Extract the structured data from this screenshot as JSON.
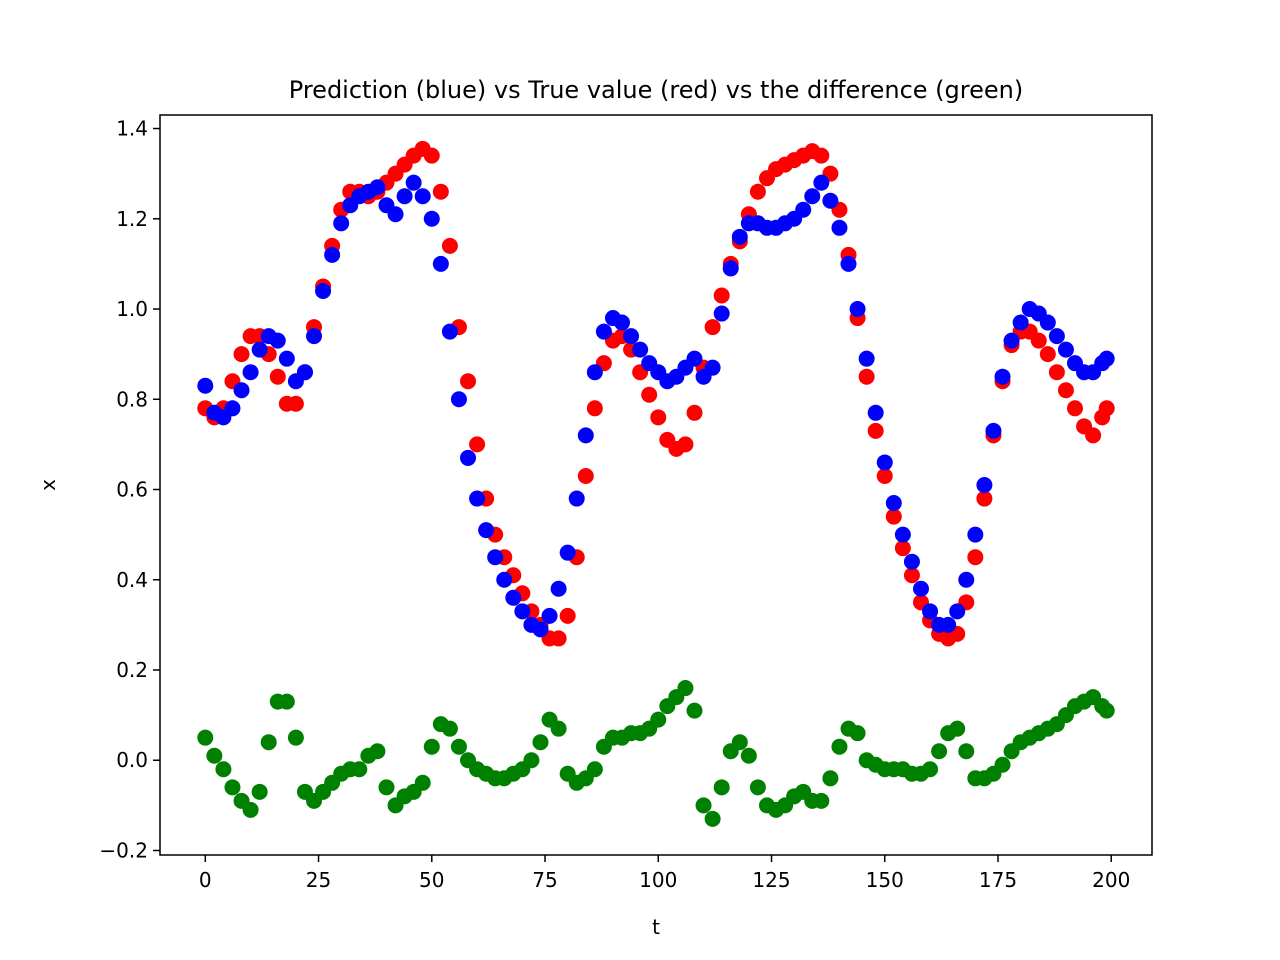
{
  "chart_data": {
    "type": "scatter",
    "title": "Prediction (blue) vs True value (red) vs the difference (green)",
    "xlabel": "t",
    "ylabel": "x",
    "xlim": [
      -10,
      209
    ],
    "ylim": [
      -0.21,
      1.43
    ],
    "xticks": [
      0,
      25,
      50,
      75,
      100,
      125,
      150,
      175,
      200
    ],
    "xtick_labels": [
      "0",
      "25",
      "50",
      "75",
      "100",
      "125",
      "150",
      "175",
      "200"
    ],
    "yticks": [
      -0.2,
      0.0,
      0.2,
      0.4,
      0.6,
      0.8,
      1.0,
      1.2,
      1.4
    ],
    "ytick_labels": [
      "−0.2",
      "0.0",
      "0.2",
      "0.4",
      "0.6",
      "0.8",
      "1.0",
      "1.2",
      "1.4"
    ],
    "grid": false,
    "legend": "none",
    "x": [
      0,
      2,
      4,
      6,
      8,
      10,
      12,
      14,
      16,
      18,
      20,
      22,
      24,
      26,
      28,
      30,
      32,
      34,
      36,
      38,
      40,
      42,
      44,
      46,
      48,
      50,
      52,
      54,
      56,
      58,
      60,
      62,
      64,
      66,
      68,
      70,
      72,
      74,
      76,
      78,
      80,
      82,
      84,
      86,
      88,
      90,
      92,
      94,
      96,
      98,
      100,
      102,
      104,
      106,
      108,
      110,
      112,
      114,
      116,
      118,
      120,
      122,
      124,
      126,
      128,
      130,
      132,
      134,
      136,
      138,
      140,
      142,
      144,
      146,
      148,
      150,
      152,
      154,
      156,
      158,
      160,
      162,
      164,
      166,
      168,
      170,
      172,
      174,
      176,
      178,
      180,
      182,
      184,
      186,
      188,
      190,
      192,
      194,
      196,
      198,
      199
    ],
    "series": [
      {
        "color": "#ff0000",
        "values": [
          0.78,
          0.76,
          0.78,
          0.84,
          0.9,
          0.94,
          0.94,
          0.9,
          0.85,
          0.79,
          0.79,
          0.86,
          0.96,
          1.05,
          1.14,
          1.22,
          1.26,
          1.26,
          1.25,
          1.26,
          1.28,
          1.3,
          1.32,
          1.34,
          1.355,
          1.34,
          1.26,
          1.14,
          0.96,
          0.84,
          0.7,
          0.58,
          0.5,
          0.45,
          0.41,
          0.37,
          0.33,
          0.3,
          0.27,
          0.27,
          0.32,
          0.45,
          0.63,
          0.78,
          0.88,
          0.93,
          0.94,
          0.91,
          0.86,
          0.81,
          0.76,
          0.71,
          0.69,
          0.7,
          0.77,
          0.87,
          0.96,
          1.03,
          1.1,
          1.15,
          1.21,
          1.26,
          1.29,
          1.31,
          1.32,
          1.33,
          1.34,
          1.35,
          1.34,
          1.3,
          1.22,
          1.12,
          0.98,
          0.85,
          0.73,
          0.63,
          0.54,
          0.47,
          0.41,
          0.35,
          0.31,
          0.28,
          0.27,
          0.28,
          0.35,
          0.45,
          0.58,
          0.72,
          0.84,
          0.92,
          0.95,
          0.95,
          0.93,
          0.9,
          0.86,
          0.82,
          0.78,
          0.74,
          0.72,
          0.76,
          0.78
        ]
      },
      {
        "color": "#0000ff",
        "values": [
          0.83,
          0.77,
          0.76,
          0.78,
          0.82,
          0.86,
          0.91,
          0.94,
          0.93,
          0.89,
          0.84,
          0.86,
          0.94,
          1.04,
          1.12,
          1.19,
          1.23,
          1.25,
          1.26,
          1.27,
          1.23,
          1.21,
          1.25,
          1.28,
          1.25,
          1.2,
          1.1,
          0.95,
          0.8,
          0.67,
          0.58,
          0.51,
          0.45,
          0.4,
          0.36,
          0.33,
          0.3,
          0.29,
          0.32,
          0.38,
          0.46,
          0.58,
          0.72,
          0.86,
          0.95,
          0.98,
          0.97,
          0.94,
          0.91,
          0.88,
          0.86,
          0.84,
          0.85,
          0.87,
          0.89,
          0.85,
          0.87,
          0.99,
          1.09,
          1.16,
          1.19,
          1.19,
          1.18,
          1.18,
          1.19,
          1.2,
          1.22,
          1.25,
          1.28,
          1.24,
          1.18,
          1.1,
          1.0,
          0.89,
          0.77,
          0.66,
          0.57,
          0.5,
          0.44,
          0.38,
          0.33,
          0.3,
          0.3,
          0.33,
          0.4,
          0.5,
          0.61,
          0.73,
          0.85,
          0.93,
          0.97,
          1.0,
          0.99,
          0.97,
          0.94,
          0.91,
          0.88,
          0.86,
          0.86,
          0.88,
          0.89
        ]
      },
      {
        "color": "#008000",
        "values": [
          0.05,
          0.01,
          -0.02,
          -0.06,
          -0.09,
          -0.11,
          -0.07,
          0.04,
          0.13,
          0.13,
          0.05,
          -0.07,
          -0.09,
          -0.07,
          -0.05,
          -0.03,
          -0.02,
          -0.02,
          0.01,
          0.02,
          -0.06,
          -0.1,
          -0.08,
          -0.07,
          -0.05,
          0.03,
          0.08,
          0.07,
          0.03,
          0.0,
          -0.02,
          -0.03,
          -0.04,
          -0.04,
          -0.03,
          -0.02,
          0.0,
          0.04,
          0.09,
          0.07,
          -0.03,
          -0.05,
          -0.04,
          -0.02,
          0.03,
          0.05,
          0.05,
          0.06,
          0.06,
          0.07,
          0.09,
          0.12,
          0.14,
          0.16,
          0.11,
          -0.1,
          -0.13,
          -0.06,
          0.02,
          0.04,
          0.01,
          -0.06,
          -0.1,
          -0.11,
          -0.1,
          -0.08,
          -0.07,
          -0.09,
          -0.09,
          -0.04,
          0.03,
          0.07,
          0.06,
          0.0,
          -0.01,
          -0.02,
          -0.02,
          -0.02,
          -0.03,
          -0.03,
          -0.02,
          0.02,
          0.06,
          0.07,
          0.02,
          -0.04,
          -0.04,
          -0.03,
          -0.01,
          0.02,
          0.04,
          0.05,
          0.06,
          0.07,
          0.08,
          0.1,
          0.12,
          0.13,
          0.14,
          0.12,
          0.11
        ]
      }
    ]
  }
}
